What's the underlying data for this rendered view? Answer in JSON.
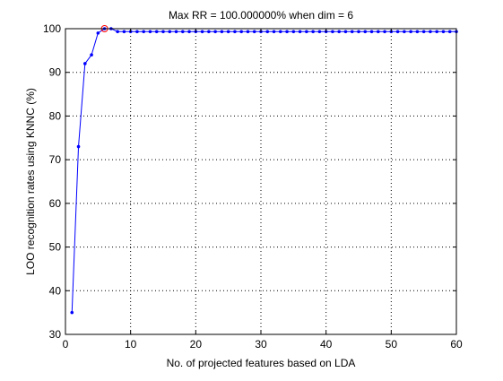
{
  "chart_data": {
    "type": "line",
    "title": "Max RR = 100.000000% when dim = 6",
    "xlabel": "No. of projected features based on LDA",
    "ylabel": "LOO recognition rates using KNNC (%)",
    "xlim": [
      0,
      60
    ],
    "ylim": [
      30,
      100
    ],
    "xticks": [
      0,
      10,
      20,
      30,
      40,
      50,
      60
    ],
    "yticks": [
      30,
      40,
      50,
      60,
      70,
      80,
      90,
      100
    ],
    "grid": true,
    "grid_style": "dotted",
    "series": [
      {
        "x": [
          1,
          2,
          3,
          4,
          5,
          6,
          7,
          8,
          9,
          10,
          11,
          12,
          13,
          14,
          15,
          16,
          17,
          18,
          19,
          20,
          21,
          22,
          23,
          24,
          25,
          26,
          27,
          28,
          29,
          30,
          31,
          32,
          33,
          34,
          35,
          36,
          37,
          38,
          39,
          40,
          41,
          42,
          43,
          44,
          45,
          46,
          47,
          48,
          49,
          50,
          51,
          52,
          53,
          54,
          55,
          56,
          57,
          58,
          59,
          60
        ],
        "y": [
          35,
          73,
          92,
          94,
          99,
          100,
          100,
          99.33,
          99.33,
          99.33,
          99.33,
          99.33,
          99.33,
          99.33,
          99.33,
          99.33,
          99.33,
          99.33,
          99.33,
          99.33,
          99.33,
          99.33,
          99.33,
          99.33,
          99.33,
          99.33,
          99.33,
          99.33,
          99.33,
          99.33,
          99.33,
          99.33,
          99.33,
          99.33,
          99.33,
          99.33,
          99.33,
          99.33,
          99.33,
          99.33,
          99.33,
          99.33,
          99.33,
          99.33,
          99.33,
          99.33,
          99.33,
          99.33,
          99.33,
          99.33,
          99.33,
          99.33,
          99.33,
          99.33,
          99.33,
          99.33,
          99.33,
          99.33,
          99.33,
          99.33
        ],
        "color": "#0000ff",
        "marker": "dot"
      }
    ],
    "highlight": {
      "x": 6,
      "y": 100,
      "color": "#ff0000",
      "marker": "circle"
    }
  }
}
